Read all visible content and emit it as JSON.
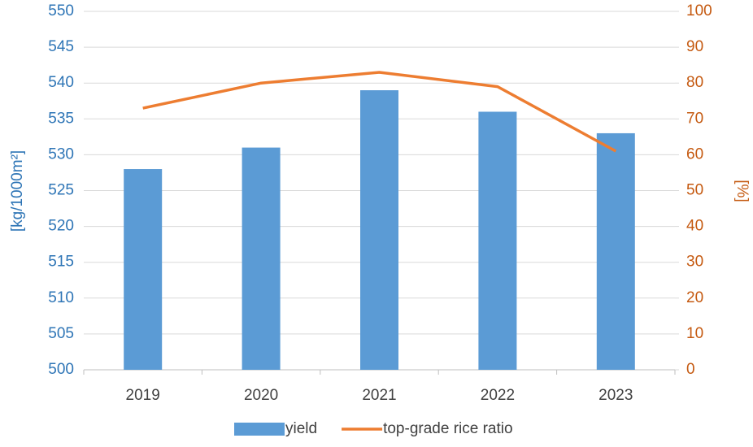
{
  "chart_data": {
    "type": "bar",
    "categories": [
      "2019",
      "2020",
      "2021",
      "2022",
      "2023"
    ],
    "series": [
      {
        "name": "yield",
        "color": "#5b9bd5",
        "values": [
          528,
          531,
          539,
          536,
          533
        ]
      },
      {
        "name": "top-grade rice ratio",
        "type": "line",
        "axis": "y2",
        "color": "#ed7d31",
        "values": [
          73,
          80,
          83,
          79,
          61
        ]
      }
    ],
    "ylabel": "[kg/1000m²]",
    "y2label": "[%]",
    "ylim": [
      500,
      550
    ],
    "yticks": [
      500,
      505,
      510,
      515,
      520,
      525,
      530,
      535,
      540,
      545,
      550
    ],
    "y2lim": [
      0,
      100
    ],
    "y2ticks": [
      0,
      10,
      20,
      30,
      40,
      50,
      60,
      70,
      80,
      90,
      100
    ],
    "ycolor": "#2e75b6",
    "y2color": "#c55a11",
    "grid": true,
    "legend": "bottom"
  }
}
